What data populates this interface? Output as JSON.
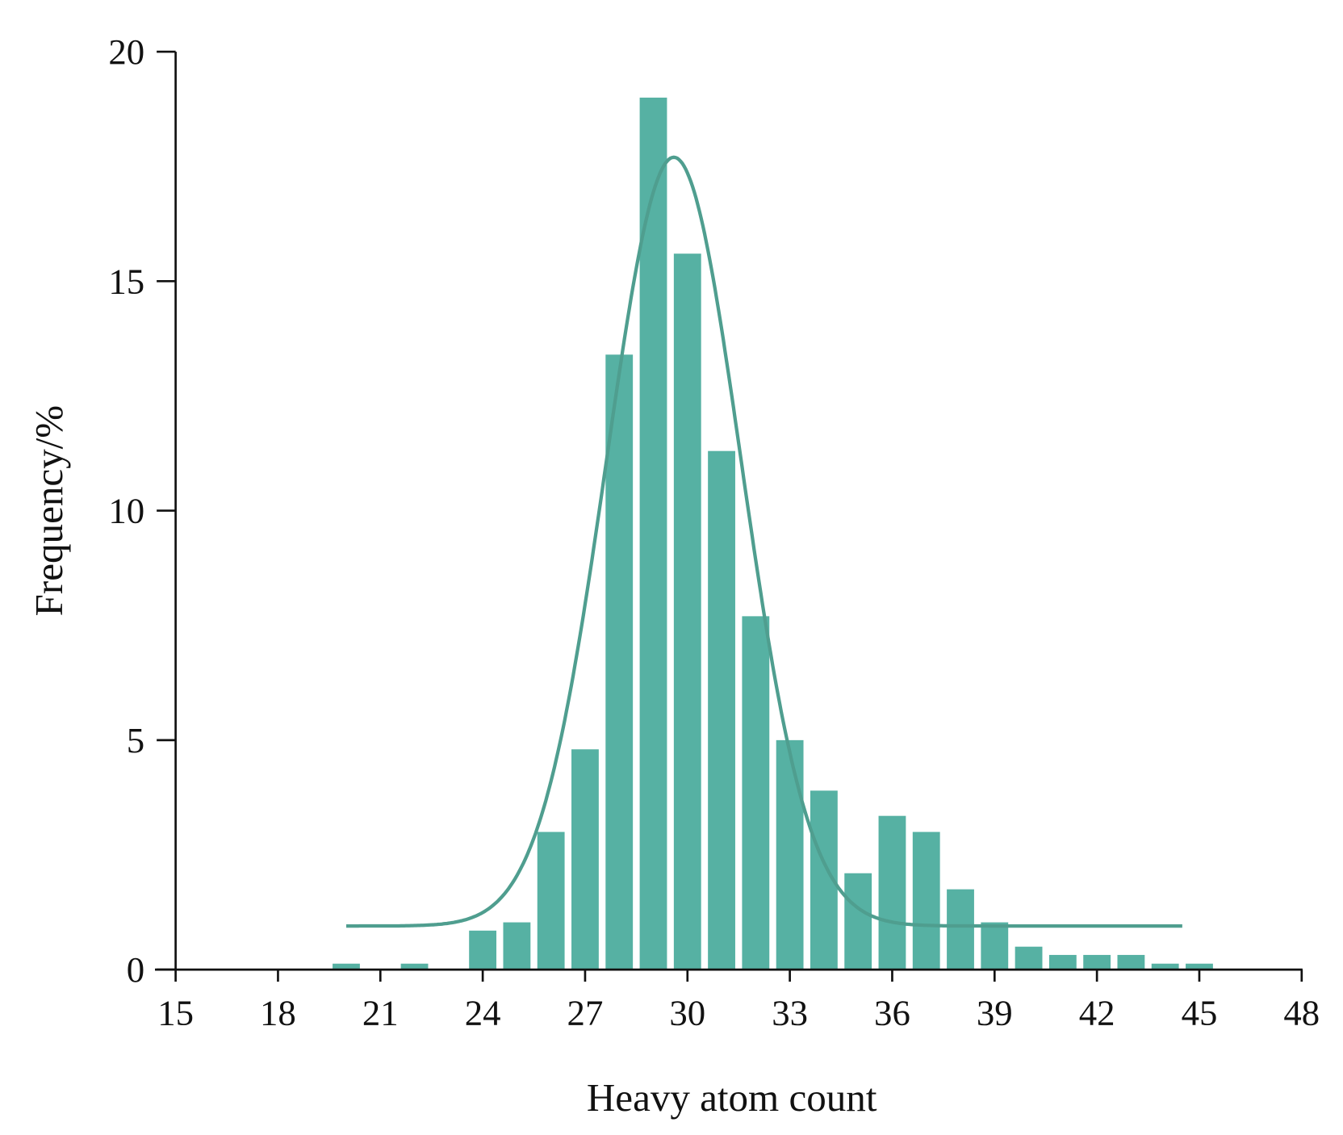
{
  "chart_data": {
    "type": "bar",
    "title": "",
    "xlabel": "Heavy atom count",
    "ylabel": "Frequency/%",
    "xlim": [
      15,
      48
    ],
    "ylim": [
      0,
      20
    ],
    "xticks": [
      "15",
      "18",
      "21",
      "24",
      "27",
      "30",
      "33",
      "36",
      "39",
      "42",
      "45",
      "48"
    ],
    "yticks": [
      "0",
      "5",
      "10",
      "15",
      "20"
    ],
    "grid": false,
    "bar_color": "#56b1a3",
    "curve_color": "#4f9e8f",
    "x": [
      20,
      22,
      24,
      25,
      26,
      27,
      28,
      29,
      30,
      31,
      32,
      33,
      34,
      35,
      36,
      37,
      38,
      39,
      40,
      41,
      42,
      43,
      44,
      45
    ],
    "values": [
      0.13,
      0.13,
      0.85,
      1.03,
      3.0,
      4.8,
      13.4,
      19.0,
      15.6,
      11.3,
      7.7,
      5.0,
      3.9,
      2.1,
      3.35,
      3.0,
      1.75,
      1.03,
      0.5,
      0.32,
      0.32,
      0.32,
      0.13,
      0.13
    ],
    "fit_curve": {
      "type": "gaussian",
      "baseline": 0.95,
      "amplitude": 16.75,
      "center": 29.6,
      "sigma": 1.97,
      "x_range": [
        20,
        44.5
      ]
    }
  }
}
